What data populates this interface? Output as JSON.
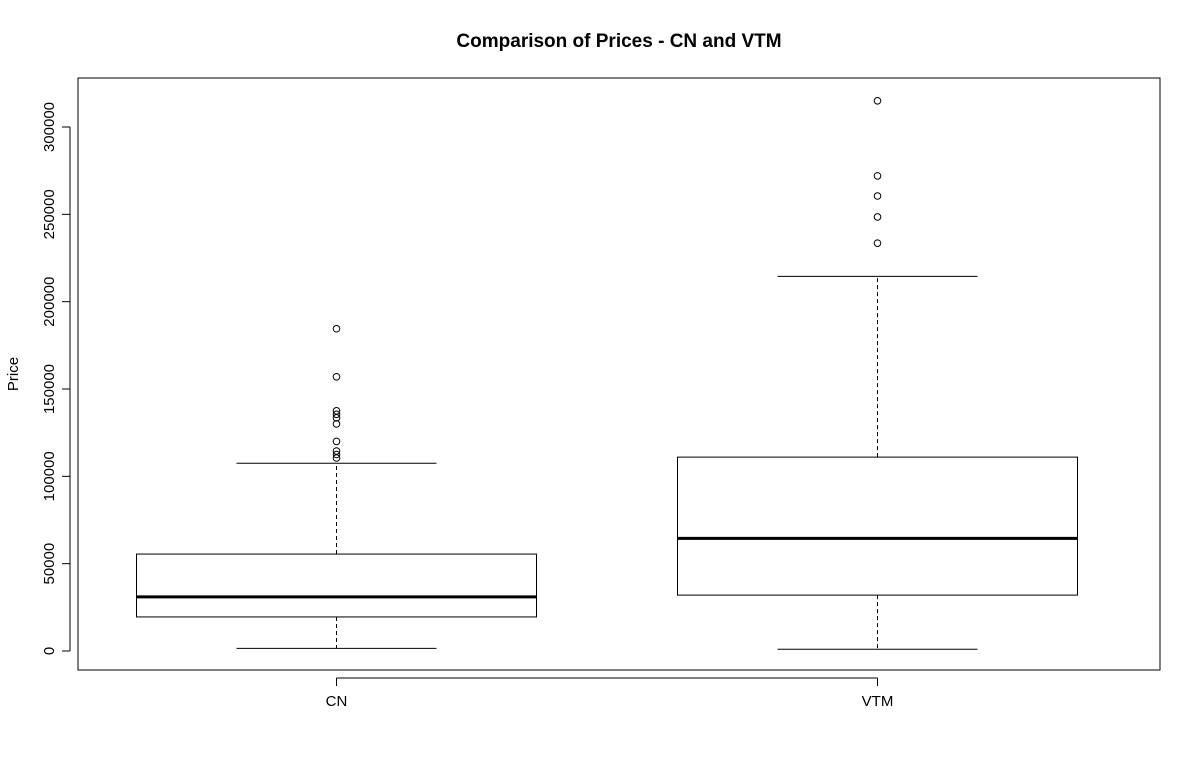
{
  "chart_data": {
    "type": "boxplot",
    "title": "Comparison of Prices - CN and VTM",
    "xlabel": "",
    "ylabel": "Price",
    "ylim": [
      -10000,
      320000
    ],
    "yticks": [
      0,
      50000,
      100000,
      150000,
      200000,
      250000,
      300000
    ],
    "ytick_labels": [
      "0",
      "50000",
      "100000",
      "150000",
      "200000",
      "250000",
      "300000"
    ],
    "categories": [
      "CN",
      "VTM"
    ],
    "boxes": [
      {
        "name": "CN",
        "whisker_low": 1500,
        "q1": 19500,
        "median": 31000,
        "q3": 55500,
        "whisker_high": 107500,
        "outliers": [
          110500,
          112500,
          114500,
          120000,
          130000,
          133500,
          135500,
          137500,
          157000,
          184500
        ]
      },
      {
        "name": "VTM",
        "whisker_low": 1000,
        "q1": 32000,
        "median": 64500,
        "q3": 111000,
        "whisker_high": 214500,
        "outliers": [
          233500,
          248500,
          260500,
          272000,
          315000
        ]
      }
    ]
  }
}
